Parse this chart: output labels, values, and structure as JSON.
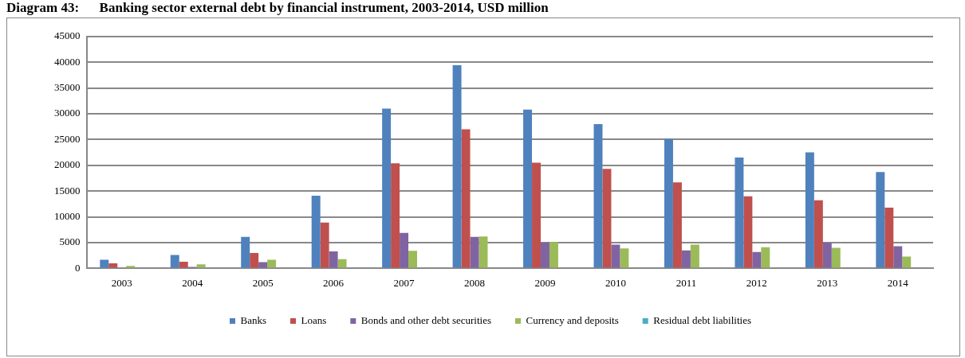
{
  "chart_data": {
    "type": "bar",
    "title": "Diagram 43:      Banking sector external debt by financial instrument, 2003-2014, USD million",
    "categories": [
      "2003",
      "2004",
      "2005",
      "2006",
      "2007",
      "2008",
      "2009",
      "2010",
      "2011",
      "2012",
      "2013",
      "2014"
    ],
    "series": [
      {
        "name": "Banks",
        "color": "#4f81bd",
        "values": [
          1700,
          2600,
          6100,
          14100,
          31000,
          39400,
          30800,
          28000,
          25100,
          21500,
          22500,
          18700
        ]
      },
      {
        "name": "Loans",
        "color": "#c0504d",
        "values": [
          1000,
          1300,
          3000,
          8900,
          20400,
          27000,
          20500,
          19300,
          16700,
          14000,
          13200,
          11800
        ]
      },
      {
        "name": "Bonds and other debt securities",
        "color": "#8064a2",
        "values": [
          0,
          300,
          1200,
          3300,
          6900,
          6100,
          5000,
          4600,
          3500,
          3200,
          5000,
          4300
        ]
      },
      {
        "name": "Currency and deposits",
        "color": "#9bbb59",
        "values": [
          500,
          800,
          1700,
          1800,
          3400,
          6200,
          5100,
          3900,
          4600,
          4100,
          4000,
          2300
        ]
      },
      {
        "name": "Residual debt liabilities",
        "color": "#4bacc6",
        "values": [
          0,
          0,
          0,
          0,
          0,
          0,
          0,
          0,
          0,
          0,
          0,
          0
        ]
      }
    ],
    "ylim": [
      0,
      45000
    ],
    "yticks": [
      0,
      5000,
      10000,
      15000,
      20000,
      25000,
      30000,
      35000,
      40000,
      45000
    ],
    "grid": "y",
    "legend": "bottom"
  }
}
